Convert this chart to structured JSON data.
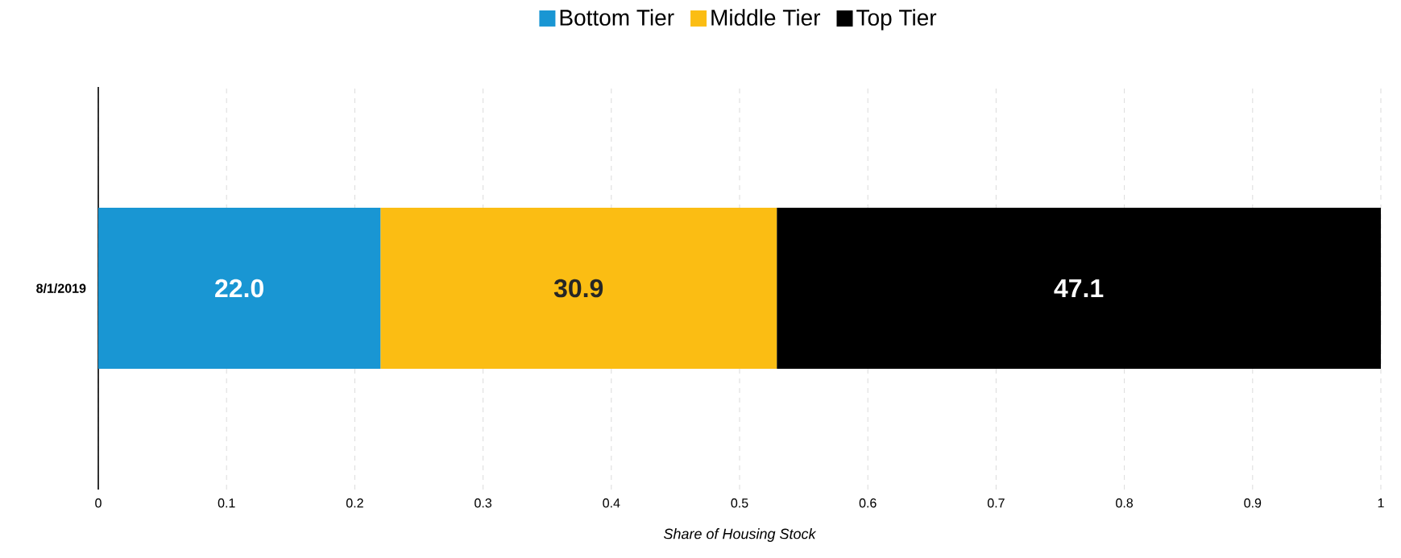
{
  "chart_data": {
    "type": "bar",
    "orientation": "horizontal",
    "stacked": true,
    "categories": [
      "8/1/2019"
    ],
    "series": [
      {
        "name": "Bottom Tier",
        "color": "#1996d3",
        "values": [
          0.22
        ]
      },
      {
        "name": "Middle Tier",
        "color": "#fbbd13",
        "values": [
          0.309
        ]
      },
      {
        "name": "Top Tier",
        "color": "#000000",
        "values": [
          0.471
        ]
      }
    ],
    "annotations": [
      "22.0",
      "30.9",
      "47.1"
    ],
    "xlabel": "Share of Housing Stock",
    "xlim": [
      0,
      1
    ],
    "xticks": [
      0,
      0.1,
      0.2,
      0.3,
      0.4,
      0.5,
      0.6,
      0.7,
      0.8,
      0.9,
      1
    ],
    "grid": "x",
    "legend": "top"
  }
}
